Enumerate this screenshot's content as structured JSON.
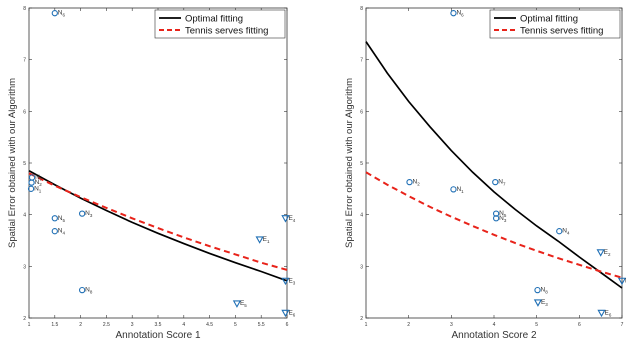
{
  "chart_data": [
    {
      "type": "scatter",
      "xlabel": "Annotation Score 1",
      "ylabel": "Spatial Error obtained with our Algorithm",
      "xlim": [
        1,
        6
      ],
      "ylim": [
        2,
        8
      ],
      "xticks": [
        "1",
        "1.5",
        "2",
        "2.5",
        "3",
        "3.5",
        "4",
        "4.5",
        "5",
        "5.5",
        "6"
      ],
      "yticks": [
        "2",
        "3",
        "4",
        "5",
        "6",
        "7",
        "8"
      ],
      "legend": {
        "position": "top-right",
        "entries": [
          "Optimal fitting",
          "Tennis serves fitting"
        ]
      },
      "lines": [
        {
          "name": "Optimal fitting",
          "style": "solid",
          "color": "#000000",
          "x": [
            1,
            1.5,
            2,
            2.5,
            3,
            3.5,
            4,
            4.5,
            5,
            5.5,
            6
          ],
          "y": [
            4.85,
            4.58,
            4.32,
            4.08,
            3.85,
            3.64,
            3.44,
            3.25,
            3.07,
            2.9,
            2.72
          ]
        },
        {
          "name": "Tennis serves fitting",
          "style": "dashed",
          "color": "#e8231a",
          "x": [
            1,
            1.5,
            2,
            2.5,
            3,
            3.5,
            4,
            4.5,
            5,
            5.5,
            6
          ],
          "y": [
            4.8,
            4.56,
            4.34,
            4.13,
            3.93,
            3.74,
            3.56,
            3.39,
            3.23,
            3.07,
            2.93
          ]
        }
      ],
      "points": [
        {
          "label": "N",
          "sub": "6",
          "marker": "circle",
          "x": 1.5,
          "y": 7.9
        },
        {
          "label": "N",
          "sub": "7",
          "marker": "circle",
          "x": 1.06,
          "y": 4.72
        },
        {
          "label": "N",
          "sub": "2",
          "marker": "circle",
          "x": 1.05,
          "y": 4.62
        },
        {
          "label": "N",
          "sub": "1",
          "marker": "circle",
          "x": 1.04,
          "y": 4.5
        },
        {
          "label": "N",
          "sub": "5",
          "marker": "circle",
          "x": 1.5,
          "y": 3.93
        },
        {
          "label": "N",
          "sub": "3",
          "marker": "circle",
          "x": 2.03,
          "y": 4.02
        },
        {
          "label": "N",
          "sub": "4",
          "marker": "circle",
          "x": 1.5,
          "y": 3.68
        },
        {
          "label": "N",
          "sub": "8",
          "marker": "circle",
          "x": 2.03,
          "y": 2.54
        },
        {
          "label": "E",
          "sub": "4",
          "marker": "triangle",
          "x": 5.97,
          "y": 3.93
        },
        {
          "label": "E",
          "sub": "1",
          "marker": "triangle",
          "x": 5.47,
          "y": 3.52
        },
        {
          "label": "E",
          "sub": "3",
          "marker": "triangle",
          "x": 5.97,
          "y": 2.72
        },
        {
          "label": "E",
          "sub": "5",
          "marker": "triangle",
          "x": 5.03,
          "y": 2.28
        },
        {
          "label": "E",
          "sub": "6",
          "marker": "triangle",
          "x": 5.97,
          "y": 2.1
        }
      ]
    },
    {
      "type": "scatter",
      "xlabel": "Annotation Score 2",
      "ylabel": "Spatial Error obtained with our Algorithm",
      "xlim": [
        1,
        7
      ],
      "ylim": [
        2,
        8
      ],
      "xticks": [
        "1",
        "2",
        "3",
        "4",
        "5",
        "6",
        "7"
      ],
      "yticks": [
        "2",
        "3",
        "4",
        "5",
        "6",
        "7",
        "8"
      ],
      "legend": {
        "position": "top-right",
        "entries": [
          "Optimal fitting",
          "Tennis serves fitting"
        ]
      },
      "lines": [
        {
          "name": "Optimal fitting",
          "style": "solid",
          "color": "#000000",
          "x": [
            1,
            1.5,
            2,
            2.5,
            3,
            3.5,
            4,
            4.5,
            5,
            5.5,
            6,
            6.5,
            7
          ],
          "y": [
            7.35,
            6.74,
            6.19,
            5.7,
            5.24,
            4.82,
            4.44,
            4.1,
            3.78,
            3.49,
            3.18,
            2.88,
            2.58
          ]
        },
        {
          "name": "Tennis serves fitting",
          "style": "dashed",
          "color": "#e8231a",
          "x": [
            1,
            1.5,
            2,
            2.5,
            3,
            3.5,
            4,
            4.5,
            5,
            5.5,
            6,
            6.5,
            7
          ],
          "y": [
            4.82,
            4.58,
            4.36,
            4.15,
            3.96,
            3.78,
            3.61,
            3.45,
            3.3,
            3.16,
            3.03,
            2.9,
            2.78
          ]
        }
      ],
      "points": [
        {
          "label": "N",
          "sub": "6",
          "marker": "circle",
          "x": 3.05,
          "y": 7.9
        },
        {
          "label": "N",
          "sub": "2",
          "marker": "circle",
          "x": 2.02,
          "y": 4.63
        },
        {
          "label": "N",
          "sub": "1",
          "marker": "circle",
          "x": 3.05,
          "y": 4.49
        },
        {
          "label": "N",
          "sub": "7",
          "marker": "circle",
          "x": 4.03,
          "y": 4.63
        },
        {
          "label": "N",
          "sub": "5",
          "marker": "circle",
          "x": 4.05,
          "y": 4.02
        },
        {
          "label": "N",
          "sub": "3",
          "marker": "circle",
          "x": 4.05,
          "y": 3.93
        },
        {
          "label": "N",
          "sub": "4",
          "marker": "circle",
          "x": 5.53,
          "y": 3.68
        },
        {
          "label": "N",
          "sub": "8",
          "marker": "circle",
          "x": 5.02,
          "y": 2.54
        },
        {
          "label": "E",
          "sub": "2",
          "marker": "triangle",
          "x": 6.5,
          "y": 3.27
        },
        {
          "label": "E",
          "sub": "3",
          "marker": "triangle",
          "x": 5.03,
          "y": 2.3
        },
        {
          "label": "E",
          "sub": "1",
          "marker": "triangle",
          "x": 7.0,
          "y": 2.72
        },
        {
          "label": "E",
          "sub": "6",
          "marker": "triangle",
          "x": 6.52,
          "y": 2.1
        }
      ]
    }
  ]
}
